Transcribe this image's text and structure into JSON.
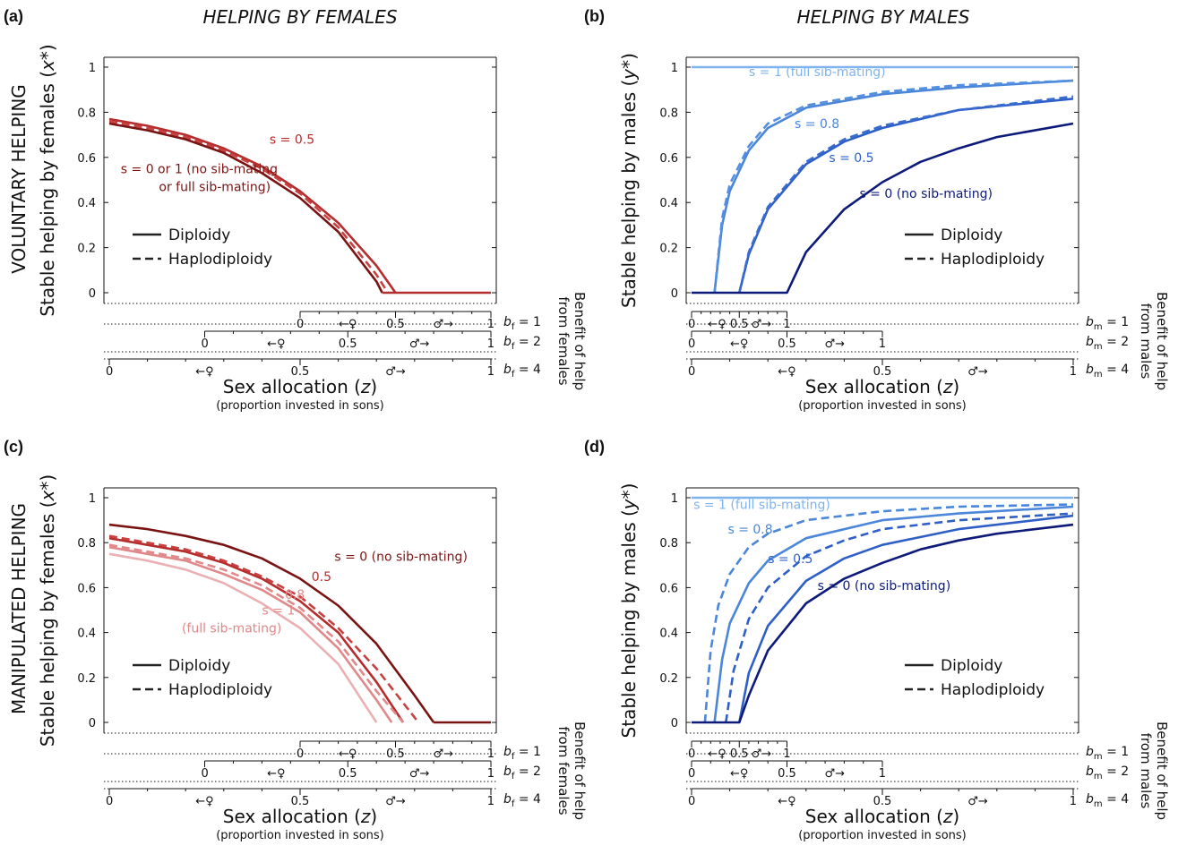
{
  "figure": {
    "col_heads": [
      "HELPING BY FEMALES",
      "HELPING BY MALES"
    ],
    "row_heads": [
      "VOLUNTARY HELPING",
      "MANIPULATED HELPING"
    ],
    "x_label_main": "Sex allocation (",
    "x_label_var": "z",
    "x_label_close": ")",
    "x_sublabel": "(proportion invested in sons)",
    "benefit_label_f": [
      "Benefit of help",
      "from females"
    ],
    "benefit_label_m": [
      "Benefit of help",
      "from males"
    ],
    "female_symbol": "♀",
    "male_symbol": "♂",
    "left_arrow": "←",
    "right_arrow": "→",
    "legend": {
      "solid": "Diploidy",
      "dashed": "Haplodiploidy"
    }
  },
  "chart_data": [
    {
      "panel": "(a)",
      "type": "line",
      "ylabel": "Stable helping by females (x*)",
      "ylabel_main": "Stable helping by females (",
      "ylabel_var": "x*",
      "ylabel_close": ")",
      "ylim": [
        0,
        1
      ],
      "yticks": [
        "0",
        "0.2",
        "0.4",
        "0.6",
        "0.8",
        "1"
      ],
      "xlim": [
        0,
        1
      ],
      "benefit_axes": [
        {
          "b": "b",
          "sub": "f",
          "val": "1",
          "range": [
            0.5,
            1
          ],
          "ticks": [
            "0",
            "0.5",
            "1"
          ]
        },
        {
          "b": "b",
          "sub": "f",
          "val": "2",
          "range": [
            0.25,
            1
          ],
          "ticks": [
            "0",
            "0.5",
            "1"
          ]
        },
        {
          "b": "b",
          "sub": "f",
          "val": "4",
          "range": [
            0,
            1
          ],
          "ticks": [
            "0",
            "0.5",
            "1"
          ]
        }
      ],
      "series": [
        {
          "style": "solid",
          "color": "#b52d2d",
          "x": [
            0,
            0.1,
            0.2,
            0.3,
            0.4,
            0.5,
            0.6,
            0.7,
            0.75
          ],
          "y": [
            0.77,
            0.74,
            0.7,
            0.64,
            0.56,
            0.45,
            0.31,
            0.12,
            0
          ]
        },
        {
          "style": "dashed",
          "color": "#c84040",
          "x": [
            0,
            0.1,
            0.2,
            0.3,
            0.4,
            0.5,
            0.6,
            0.7,
            0.73
          ],
          "y": [
            0.76,
            0.73,
            0.69,
            0.63,
            0.55,
            0.44,
            0.29,
            0.08,
            0
          ]
        },
        {
          "style": "solid",
          "color": "#7a1414",
          "x": [
            0,
            0.1,
            0.2,
            0.3,
            0.4,
            0.5,
            0.6,
            0.7,
            0.715
          ],
          "y": [
            0.75,
            0.72,
            0.68,
            0.62,
            0.53,
            0.42,
            0.27,
            0.05,
            0
          ]
        },
        {
          "style": "solid",
          "color": "#b52d2d",
          "x": [
            0.715,
            1
          ],
          "y": [
            0,
            0
          ]
        }
      ],
      "annotations": [
        {
          "text": "s = 0.5",
          "color": "#b52d2d",
          "x": 0.42,
          "y": 0.66
        },
        {
          "text": "s = 0 or 1 (no sib-mating",
          "color": "#7a1414",
          "x": 0.03,
          "y": 0.53
        },
        {
          "text": "or full sib-mating)",
          "color": "#7a1414",
          "x": 0.13,
          "y": 0.45
        }
      ]
    },
    {
      "panel": "(b)",
      "type": "line",
      "ylabel": "Stable helping by males (y*)",
      "ylabel_main": "Stable helping by males (",
      "ylabel_var": "y*",
      "ylabel_close": ")",
      "ylim": [
        0,
        1
      ],
      "yticks": [
        "0",
        "0.2",
        "0.4",
        "0.6",
        "0.8",
        "1"
      ],
      "xlim": [
        0,
        1
      ],
      "benefit_axes": [
        {
          "b": "b",
          "sub": "m",
          "val": "1",
          "range": [
            0,
            0.25
          ],
          "ticks": [
            "0",
            "0.5",
            "1"
          ]
        },
        {
          "b": "b",
          "sub": "m",
          "val": "2",
          "range": [
            0,
            0.5
          ],
          "ticks": [
            "0",
            "0.5",
            "1"
          ]
        },
        {
          "b": "b",
          "sub": "m",
          "val": "4",
          "range": [
            0,
            1
          ],
          "ticks": [
            "0",
            "0.5",
            "1"
          ]
        }
      ],
      "series": [
        {
          "style": "solid",
          "color": "#7fb3ee",
          "x": [
            0,
            1
          ],
          "y": [
            1,
            1
          ]
        },
        {
          "style": "solid",
          "color": "#4b86d9",
          "x": [
            0.06,
            0.08,
            0.1,
            0.15,
            0.2,
            0.3,
            0.5,
            0.7,
            1
          ],
          "y": [
            0,
            0.3,
            0.45,
            0.63,
            0.73,
            0.82,
            0.88,
            0.91,
            0.94
          ]
        },
        {
          "style": "dashed",
          "color": "#5590e0",
          "x": [
            0.06,
            0.08,
            0.1,
            0.15,
            0.2,
            0.3,
            0.5,
            0.7,
            1
          ],
          "y": [
            0,
            0.33,
            0.48,
            0.65,
            0.75,
            0.83,
            0.89,
            0.92,
            0.94
          ]
        },
        {
          "style": "solid",
          "color": "#2e5fc7",
          "x": [
            0.125,
            0.15,
            0.2,
            0.3,
            0.4,
            0.5,
            0.7,
            1
          ],
          "y": [
            0,
            0.17,
            0.37,
            0.57,
            0.67,
            0.73,
            0.81,
            0.86
          ]
        },
        {
          "style": "dashed",
          "color": "#3a6cd0",
          "x": [
            0.125,
            0.15,
            0.2,
            0.3,
            0.4,
            0.5,
            0.7,
            1
          ],
          "y": [
            0,
            0.18,
            0.38,
            0.58,
            0.68,
            0.74,
            0.81,
            0.87
          ]
        },
        {
          "style": "solid",
          "color": "#0d1a7a",
          "x": [
            0,
            0.25,
            0.3,
            0.4,
            0.5,
            0.6,
            0.7,
            0.8,
            1
          ],
          "y": [
            0,
            0,
            0.18,
            0.37,
            0.49,
            0.58,
            0.64,
            0.69,
            0.75
          ]
        }
      ],
      "annotations": [
        {
          "text": "s = 1 (full sib-mating)",
          "color": "#7fb3ee",
          "x": 0.15,
          "y": 0.96
        },
        {
          "text": "s = 0.8",
          "color": "#4b86d9",
          "x": 0.27,
          "y": 0.73
        },
        {
          "text": "s = 0.5",
          "color": "#2e5fc7",
          "x": 0.36,
          "y": 0.58
        },
        {
          "text": "s = 0 (no sib-mating)",
          "color": "#0d1a7a",
          "x": 0.44,
          "y": 0.42
        }
      ]
    },
    {
      "panel": "(c)",
      "type": "line",
      "ylabel": "Stable helping by females (x*)",
      "ylabel_main": "Stable helping by females (",
      "ylabel_var": "x*",
      "ylabel_close": ")",
      "ylim": [
        0,
        1
      ],
      "yticks": [
        "0",
        "0.2",
        "0.4",
        "0.6",
        "0.8",
        "1"
      ],
      "xlim": [
        0,
        1
      ],
      "benefit_axes": [
        {
          "b": "b",
          "sub": "f",
          "val": "1",
          "range": [
            0.5,
            1
          ],
          "ticks": [
            "0",
            "0.5",
            "1"
          ]
        },
        {
          "b": "b",
          "sub": "f",
          "val": "2",
          "range": [
            0.25,
            1
          ],
          "ticks": [
            "0",
            "0.5",
            "1"
          ]
        },
        {
          "b": "b",
          "sub": "f",
          "val": "4",
          "range": [
            0,
            1
          ],
          "ticks": [
            "0",
            "0.5",
            "1"
          ]
        }
      ],
      "series": [
        {
          "style": "solid",
          "color": "#7a1414",
          "x": [
            0,
            0.1,
            0.2,
            0.3,
            0.4,
            0.5,
            0.6,
            0.7,
            0.8,
            0.85
          ],
          "y": [
            0.88,
            0.86,
            0.83,
            0.79,
            0.73,
            0.64,
            0.52,
            0.35,
            0.12,
            0
          ]
        },
        {
          "style": "solid",
          "color": "#b52d2d",
          "x": [
            0,
            0.1,
            0.2,
            0.3,
            0.4,
            0.5,
            0.6,
            0.7,
            0.77
          ],
          "y": [
            0.82,
            0.79,
            0.76,
            0.71,
            0.64,
            0.54,
            0.4,
            0.18,
            0
          ]
        },
        {
          "style": "dashed",
          "color": "#c84040",
          "x": [
            0,
            0.1,
            0.2,
            0.3,
            0.4,
            0.5,
            0.6,
            0.7,
            0.81
          ],
          "y": [
            0.83,
            0.8,
            0.77,
            0.72,
            0.65,
            0.56,
            0.42,
            0.24,
            0
          ]
        },
        {
          "style": "solid",
          "color": "#e0888a",
          "x": [
            0,
            0.1,
            0.2,
            0.3,
            0.4,
            0.5,
            0.6,
            0.7,
            0.74
          ],
          "y": [
            0.78,
            0.75,
            0.72,
            0.66,
            0.59,
            0.49,
            0.33,
            0.1,
            0
          ]
        },
        {
          "style": "dashed",
          "color": "#e0888a",
          "x": [
            0,
            0.1,
            0.2,
            0.3,
            0.4,
            0.5,
            0.6,
            0.7,
            0.77
          ],
          "y": [
            0.79,
            0.76,
            0.73,
            0.68,
            0.61,
            0.51,
            0.36,
            0.14,
            0
          ]
        },
        {
          "style": "solid",
          "color": "#eab0b3",
          "x": [
            0,
            0.1,
            0.2,
            0.3,
            0.4,
            0.5,
            0.6,
            0.7
          ],
          "y": [
            0.75,
            0.72,
            0.68,
            0.62,
            0.53,
            0.42,
            0.26,
            0
          ]
        },
        {
          "style": "solid",
          "color": "#7a1414",
          "x": [
            0.85,
            1
          ],
          "y": [
            0,
            0
          ]
        }
      ],
      "annotations": [
        {
          "text": "s = 0 (no sib-mating)",
          "color": "#7a1414",
          "x": 0.59,
          "y": 0.72
        },
        {
          "text": "0.5",
          "color": "#b52d2d",
          "x": 0.53,
          "y": 0.63
        },
        {
          "text": "0.8",
          "color": "#e0888a",
          "x": 0.46,
          "y": 0.55
        },
        {
          "text": "s = 1",
          "color": "#e0888a",
          "x": 0.4,
          "y": 0.48
        },
        {
          "text": "(full sib-mating)",
          "color": "#e0888a",
          "x": 0.19,
          "y": 0.4
        }
      ]
    },
    {
      "panel": "(d)",
      "type": "line",
      "ylabel": "Stable helping by males (y*)",
      "ylabel_main": "Stable helping by males (",
      "ylabel_var": "y*",
      "ylabel_close": ")",
      "ylim": [
        0,
        1
      ],
      "yticks": [
        "0",
        "0.2",
        "0.4",
        "0.6",
        "0.8",
        "1"
      ],
      "xlim": [
        0,
        1
      ],
      "benefit_axes": [
        {
          "b": "b",
          "sub": "m",
          "val": "1",
          "range": [
            0,
            0.25
          ],
          "ticks": [
            "0",
            "0.5",
            "1"
          ]
        },
        {
          "b": "b",
          "sub": "m",
          "val": "2",
          "range": [
            0,
            0.5
          ],
          "ticks": [
            "0",
            "0.5",
            "1"
          ]
        },
        {
          "b": "b",
          "sub": "m",
          "val": "4",
          "range": [
            0,
            1
          ],
          "ticks": [
            "0",
            "0.5",
            "1"
          ]
        }
      ],
      "series": [
        {
          "style": "solid",
          "color": "#7fb3ee",
          "x": [
            0,
            1
          ],
          "y": [
            1,
            1
          ]
        },
        {
          "style": "dashed",
          "color": "#4b86d9",
          "x": [
            0.035,
            0.05,
            0.07,
            0.1,
            0.15,
            0.2,
            0.3,
            0.5,
            0.7,
            1
          ],
          "y": [
            0,
            0.32,
            0.52,
            0.66,
            0.78,
            0.84,
            0.9,
            0.94,
            0.96,
            0.97
          ]
        },
        {
          "style": "solid",
          "color": "#4b86d9",
          "x": [
            0.06,
            0.08,
            0.1,
            0.15,
            0.2,
            0.3,
            0.5,
            0.7,
            1
          ],
          "y": [
            0,
            0.28,
            0.44,
            0.62,
            0.72,
            0.82,
            0.9,
            0.93,
            0.96
          ]
        },
        {
          "style": "dashed",
          "color": "#2e5fc7",
          "x": [
            0.09,
            0.11,
            0.15,
            0.2,
            0.3,
            0.4,
            0.5,
            0.7,
            1
          ],
          "y": [
            0,
            0.23,
            0.46,
            0.6,
            0.74,
            0.81,
            0.86,
            0.9,
            0.93
          ]
        },
        {
          "style": "solid",
          "color": "#2e5fc7",
          "x": [
            0.125,
            0.15,
            0.2,
            0.3,
            0.4,
            0.5,
            0.7,
            1
          ],
          "y": [
            0,
            0.22,
            0.43,
            0.63,
            0.73,
            0.79,
            0.86,
            0.92
          ]
        },
        {
          "style": "solid",
          "color": "#0d1a7a",
          "x": [
            0,
            0.125,
            0.15,
            0.2,
            0.3,
            0.4,
            0.5,
            0.6,
            0.7,
            0.8,
            1
          ],
          "y": [
            0,
            0,
            0.12,
            0.32,
            0.53,
            0.64,
            0.71,
            0.77,
            0.81,
            0.84,
            0.88
          ]
        }
      ],
      "annotations": [
        {
          "text": "s = 1 (full sib-mating)",
          "color": "#7fb3ee",
          "x": 0.005,
          "y": 0.95
        },
        {
          "text": "s = 0.8",
          "color": "#4b86d9",
          "x": 0.095,
          "y": 0.84
        },
        {
          "text": "s = 0.5",
          "color": "#2e5fc7",
          "x": 0.2,
          "y": 0.71
        },
        {
          "text": "s = 0 (no sib-mating)",
          "color": "#0d1a7a",
          "x": 0.33,
          "y": 0.59
        }
      ]
    }
  ]
}
